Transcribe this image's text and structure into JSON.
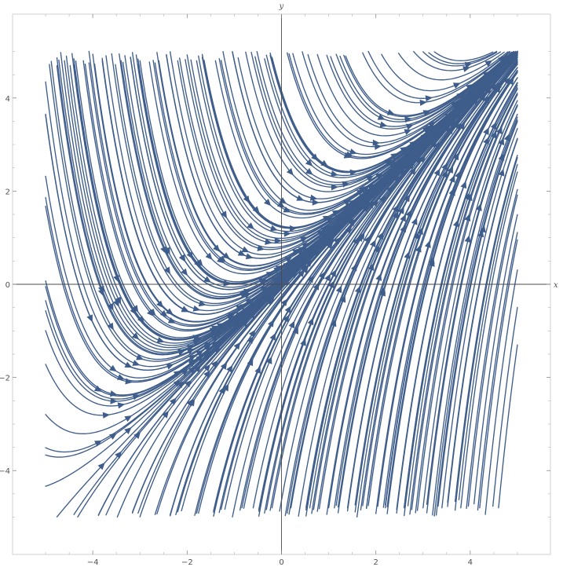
{
  "chart_data": {
    "type": "streamplot",
    "field": {
      "dx": "1",
      "dy": "1 + x - y"
    },
    "xlim": [
      -5.7,
      5.7
    ],
    "ylim": [
      -5.8,
      5.8
    ],
    "stream_domain": {
      "x": [
        -5,
        5
      ],
      "y": [
        -5,
        5
      ]
    },
    "xlabel": "x",
    "ylabel": "y",
    "x_ticks": [
      -4,
      -2,
      0,
      2,
      4
    ],
    "y_ticks": [
      -4,
      -2,
      0,
      2,
      4
    ],
    "x_tick_labels": [
      "−4",
      "−2",
      "0",
      "2",
      "4"
    ],
    "y_tick_labels": [
      "−4",
      "−2",
      "0",
      "2",
      "4"
    ],
    "grid": false,
    "frame": true,
    "stream_color": "#3f5d8a",
    "axis_color": "#4a4a4a",
    "frame_color": "#d0d0d0"
  }
}
